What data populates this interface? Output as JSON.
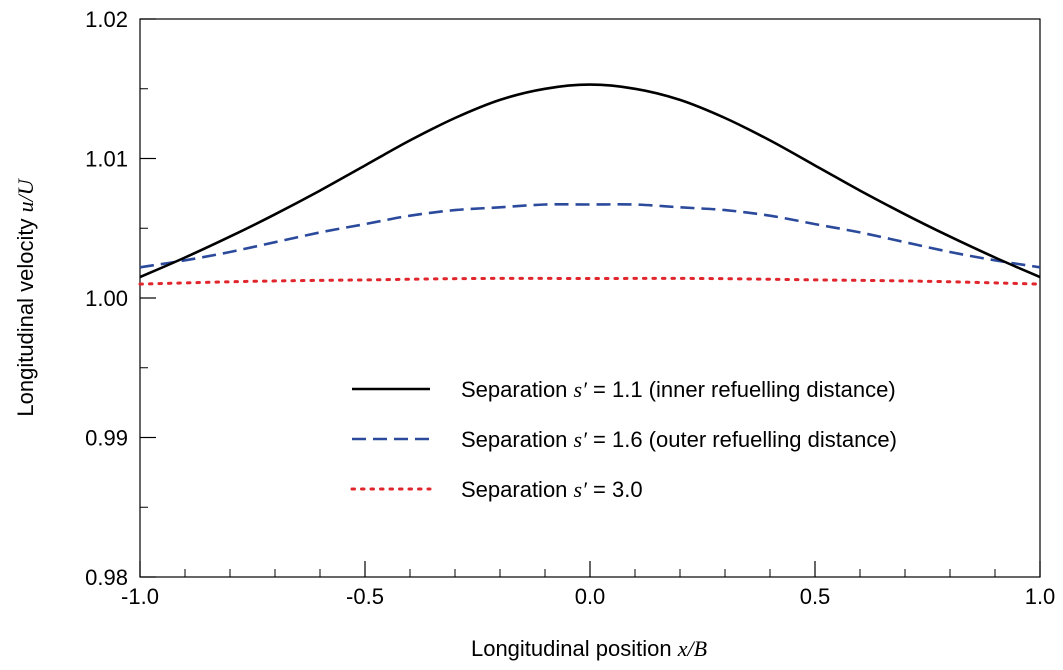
{
  "chart_data": {
    "type": "line",
    "xlabel": {
      "text": "Longitudinal position ",
      "math": "x/B"
    },
    "ylabel": {
      "text": "Longitudinal velocity ",
      "math": "u/U"
    },
    "xlim": [
      -1.0,
      1.0
    ],
    "ylim": [
      0.98,
      1.02
    ],
    "x_ticks": [
      -1.0,
      -0.5,
      0.0,
      0.5,
      1.0
    ],
    "x_tick_labels": [
      "-1.0",
      "-0.5",
      "0.0",
      "0.5",
      "1.0"
    ],
    "y_ticks": [
      0.98,
      0.99,
      1.0,
      1.01,
      1.02
    ],
    "y_tick_labels": [
      "0.98",
      "0.99",
      "1.00",
      "1.01",
      "1.02"
    ],
    "x_minor_step": 0.1,
    "y_minor_step": 0.005,
    "grid": false,
    "legend_position": "lower-center",
    "series": [
      {
        "name": "Separation s′ = 1.1 (inner refuelling distance)",
        "legend_prefix": "Separation ",
        "legend_math": "s′",
        "legend_suffix": " = 1.1 (inner refuelling distance)",
        "style": "solid",
        "color": "#000000",
        "x": [
          -1.0,
          -0.9,
          -0.8,
          -0.7,
          -0.6,
          -0.5,
          -0.4,
          -0.3,
          -0.2,
          -0.1,
          0.0,
          0.1,
          0.2,
          0.3,
          0.4,
          0.5,
          0.6,
          0.7,
          0.8,
          0.9,
          1.0
        ],
        "y": [
          1.0015,
          1.0029,
          1.0044,
          1.006,
          1.0077,
          1.0095,
          1.0113,
          1.0129,
          1.0142,
          1.015,
          1.0153,
          1.015,
          1.0142,
          1.0129,
          1.0113,
          1.0095,
          1.0077,
          1.006,
          1.0044,
          1.0029,
          1.0015
        ]
      },
      {
        "name": "Separation s′ = 1.6 (outer refuelling distance)",
        "legend_prefix": "Separation ",
        "legend_math": "s′",
        "legend_suffix": " = 1.6 (outer refuelling distance)",
        "style": "dashed",
        "color": "#2b4a9c",
        "x": [
          -1.0,
          -0.9,
          -0.8,
          -0.7,
          -0.6,
          -0.5,
          -0.4,
          -0.3,
          -0.2,
          -0.1,
          0.0,
          0.1,
          0.2,
          0.3,
          0.4,
          0.5,
          0.6,
          0.7,
          0.8,
          0.9,
          1.0
        ],
        "y": [
          1.0022,
          1.0027,
          1.0033,
          1.004,
          1.0047,
          1.0053,
          1.0059,
          1.0063,
          1.0065,
          1.0067,
          1.0067,
          1.0067,
          1.0065,
          1.0063,
          1.0059,
          1.0053,
          1.0047,
          1.004,
          1.0033,
          1.0027,
          1.0022
        ]
      },
      {
        "name": "Separation s′ = 3.0",
        "legend_prefix": "Separation ",
        "legend_math": "s′",
        "legend_suffix": " = 3.0",
        "style": "dotted",
        "color": "#e0262c",
        "x": [
          -1.0,
          -0.75,
          -0.5,
          -0.25,
          0.0,
          0.25,
          0.5,
          0.75,
          1.0
        ],
        "y": [
          1.001,
          1.0012,
          1.0013,
          1.0014,
          1.0014,
          1.0014,
          1.0013,
          1.0012,
          1.001
        ]
      }
    ]
  }
}
